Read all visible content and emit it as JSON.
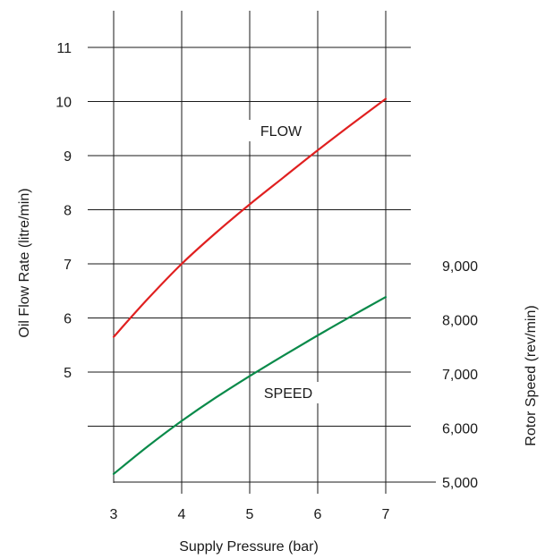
{
  "chart_data": {
    "type": "line",
    "title": "",
    "xlabel": "Supply Pressure (bar)",
    "ylabel": "Oil Flow Rate (litre/min)",
    "y2label": "Rotor Speed (rev/min)",
    "xlim": [
      3,
      7
    ],
    "ylim": [
      4,
      11
    ],
    "y2lim": [
      5000,
      9000
    ],
    "x_ticks": [
      "3",
      "4",
      "5",
      "6",
      "7"
    ],
    "y_ticks": [
      "5",
      "6",
      "7",
      "8",
      "9",
      "10",
      "11"
    ],
    "y2_ticks": [
      "5,000",
      "6,000",
      "7,000",
      "8,000",
      "9,000"
    ],
    "grid": true,
    "legend": "none",
    "series": [
      {
        "name": "FLOW",
        "axis": "left",
        "color": "#e02020",
        "x": [
          3,
          3.5,
          4,
          4.5,
          5,
          5.5,
          6,
          6.5,
          7
        ],
        "y": [
          5.65,
          6.35,
          7.0,
          7.57,
          8.1,
          8.6,
          9.1,
          9.58,
          10.05
        ]
      },
      {
        "name": "SPEED",
        "axis": "right",
        "color": "#0a8a4a",
        "x": [
          3,
          3.5,
          4,
          4.5,
          5,
          5.5,
          6,
          6.5,
          7
        ],
        "y": [
          5150,
          5660,
          6130,
          6560,
          6960,
          7340,
          7710,
          8070,
          8420
        ]
      }
    ]
  }
}
